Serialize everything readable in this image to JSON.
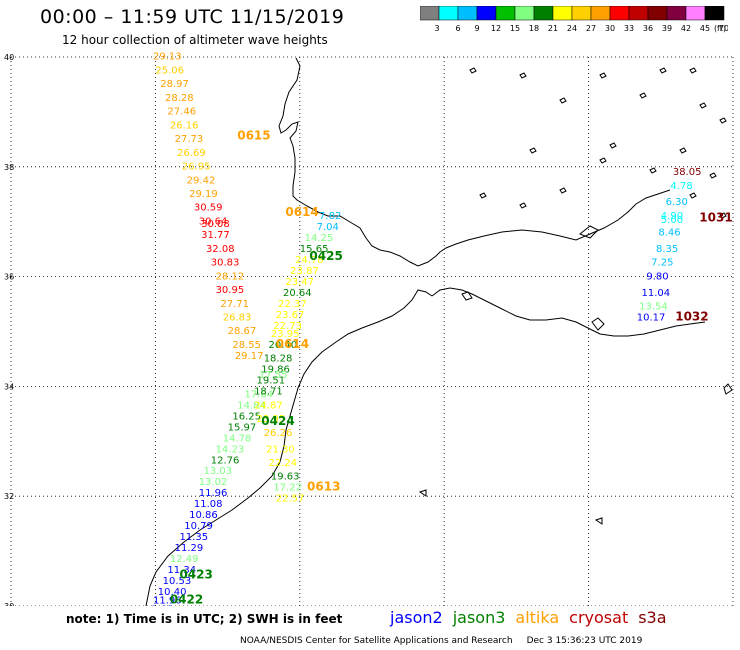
{
  "title": "00:00 – 11:59 UTC 11/15/2019",
  "subtitle": "12 hour collection of altimeter wave heights",
  "colorbar": {
    "colors": [
      "#7f7f7f",
      "#00ffff",
      "#00bfff",
      "#0000ff",
      "#00c000",
      "#80ff80",
      "#008000",
      "#ffff00",
      "#ffd000",
      "#ffa000",
      "#ff0000",
      "#c00000",
      "#800000",
      "#800040",
      "#ff80ff",
      "#000000"
    ],
    "ticks": [
      "3",
      "6",
      "9",
      "12",
      "15",
      "18",
      "21",
      "24",
      "27",
      "30",
      "33",
      "36",
      "39",
      "42",
      "45",
      "70"
    ],
    "unit": "(ft)"
  },
  "axes": {
    "lon_ticks": [
      -15,
      -12,
      -9,
      -6,
      -3,
      0
    ],
    "lat_ticks": [
      30,
      32,
      34,
      36,
      38,
      40
    ],
    "lon_labels": [
      "–15",
      "–12",
      "–9",
      "–6",
      "–3",
      "0"
    ],
    "lat_labels": [
      "30",
      "32",
      "34",
      "36",
      "38",
      "40"
    ],
    "lon_range": [
      -15,
      0
    ],
    "lat_range": [
      30,
      40
    ],
    "grid": "dotted"
  },
  "passes": [
    {
      "label": "0615",
      "color": "#ffa000",
      "lon": -10.3,
      "lat": 38.5
    },
    {
      "label": "0614",
      "color": "#ffa000",
      "lon": -9.3,
      "lat": 37.1
    },
    {
      "label": "0425",
      "color": "#008000",
      "lon": -8.8,
      "lat": 36.3
    },
    {
      "label": "0614",
      "color": "#ffa000",
      "lon": -9.5,
      "lat": 34.7
    },
    {
      "label": "0424",
      "color": "#008000",
      "lon": -9.8,
      "lat": 33.3
    },
    {
      "label": "0613",
      "color": "#ffa000",
      "lon": -8.85,
      "lat": 32.1
    },
    {
      "label": "0423",
      "color": "#008000",
      "lon": -11.5,
      "lat": 30.5
    },
    {
      "label": "0422",
      "color": "#008000",
      "lon": -11.7,
      "lat": 30.05
    },
    {
      "label": "1031",
      "color": "#800000",
      "lon": -0.7,
      "lat": 37.0
    },
    {
      "label": "1032",
      "color": "#800000",
      "lon": -1.2,
      "lat": 35.2
    }
  ],
  "labels": [
    {
      "v": "29.13",
      "c": "#ffa000",
      "lon": -12.05,
      "lat": 39.95
    },
    {
      "v": "25.06",
      "c": "#ffd000",
      "lon": -12.0,
      "lat": 39.7
    },
    {
      "v": "28.97",
      "c": "#ffa000",
      "lon": -11.9,
      "lat": 39.45
    },
    {
      "v": "28.28",
      "c": "#ffa000",
      "lon": -11.8,
      "lat": 39.2
    },
    {
      "v": "27.46",
      "c": "#ffa000",
      "lon": -11.75,
      "lat": 38.95
    },
    {
      "v": "26.16",
      "c": "#ffd000",
      "lon": -11.7,
      "lat": 38.7
    },
    {
      "v": "27.73",
      "c": "#ffa000",
      "lon": -11.6,
      "lat": 38.45
    },
    {
      "v": "26.69",
      "c": "#ffd000",
      "lon": -11.55,
      "lat": 38.2
    },
    {
      "v": "26.95",
      "c": "#ffd000",
      "lon": -11.45,
      "lat": 37.95
    },
    {
      "v": "29.42",
      "c": "#ffa000",
      "lon": -11.35,
      "lat": 37.7
    },
    {
      "v": "29.19",
      "c": "#ffa000",
      "lon": -11.3,
      "lat": 37.45
    },
    {
      "v": "30.59",
      "c": "#ff0000",
      "lon": -11.2,
      "lat": 37.2
    },
    {
      "v": "30.64",
      "c": "#ff0000",
      "lon": -11.1,
      "lat": 36.95
    },
    {
      "v": "30.08",
      "c": "#ff0000",
      "lon": -11.05,
      "lat": 36.9
    },
    {
      "v": "31.77",
      "c": "#ff0000",
      "lon": -11.05,
      "lat": 36.7
    },
    {
      "v": "32.08",
      "c": "#ff0000",
      "lon": -10.95,
      "lat": 36.45
    },
    {
      "v": "30.83",
      "c": "#ff0000",
      "lon": -10.85,
      "lat": 36.2
    },
    {
      "v": "28.12",
      "c": "#ffa000",
      "lon": -10.75,
      "lat": 35.95
    },
    {
      "v": "30.95",
      "c": "#ff0000",
      "lon": -10.75,
      "lat": 35.7
    },
    {
      "v": "27.71",
      "c": "#ffa000",
      "lon": -10.65,
      "lat": 35.45
    },
    {
      "v": "26.83",
      "c": "#ffd000",
      "lon": -10.6,
      "lat": 35.2
    },
    {
      "v": "28.67",
      "c": "#ffa000",
      "lon": -10.5,
      "lat": 34.95
    },
    {
      "v": "28.55",
      "c": "#ffa000",
      "lon": -10.4,
      "lat": 34.7
    },
    {
      "v": "29.17",
      "c": "#ffa000",
      "lon": -10.35,
      "lat": 34.5
    },
    {
      "v": "7.82",
      "c": "#00bfff",
      "lon": -8.6,
      "lat": 37.05
    },
    {
      "v": "7.04",
      "c": "#00bfff",
      "lon": -8.65,
      "lat": 36.85
    },
    {
      "v": "14.25",
      "c": "#80ff80",
      "lon": -8.9,
      "lat": 36.65
    },
    {
      "v": "15.65",
      "c": "#008000",
      "lon": -9.0,
      "lat": 36.45
    },
    {
      "v": "24.78",
      "c": "#ffff00",
      "lon": -9.1,
      "lat": 36.25
    },
    {
      "v": "23.87",
      "c": "#ffff00",
      "lon": -9.2,
      "lat": 36.05
    },
    {
      "v": "23.47",
      "c": "#ffff00",
      "lon": -9.3,
      "lat": 35.85
    },
    {
      "v": "20.64",
      "c": "#008000",
      "lon": -9.35,
      "lat": 35.65
    },
    {
      "v": "22.37",
      "c": "#ffff00",
      "lon": -9.45,
      "lat": 35.45
    },
    {
      "v": "23.67",
      "c": "#ffff00",
      "lon": -9.5,
      "lat": 35.25
    },
    {
      "v": "22.73",
      "c": "#ffff00",
      "lon": -9.55,
      "lat": 35.05
    },
    {
      "v": "23.95",
      "c": "#ffff00",
      "lon": -9.6,
      "lat": 34.9
    },
    {
      "v": "20.40",
      "c": "#008000",
      "lon": -9.65,
      "lat": 34.7
    },
    {
      "v": "18.28",
      "c": "#008000",
      "lon": -9.75,
      "lat": 34.45
    },
    {
      "v": "19.86",
      "c": "#008000",
      "lon": -9.8,
      "lat": 34.25
    },
    {
      "v": "17.55",
      "c": "#80ff80",
      "lon": -9.85,
      "lat": 34.15
    },
    {
      "v": "19.51",
      "c": "#008000",
      "lon": -9.9,
      "lat": 34.05
    },
    {
      "v": "17.64",
      "c": "#80ff80",
      "lon": -10.15,
      "lat": 33.8
    },
    {
      "v": "18.71",
      "c": "#008000",
      "lon": -9.95,
      "lat": 33.85
    },
    {
      "v": "14.84",
      "c": "#80ff80",
      "lon": -10.3,
      "lat": 33.6
    },
    {
      "v": "24.87",
      "c": "#ffff00",
      "lon": -9.95,
      "lat": 33.6
    },
    {
      "v": "16.25",
      "c": "#008000",
      "lon": -10.4,
      "lat": 33.4
    },
    {
      "v": "23.95",
      "c": "#ffff00",
      "lon": -9.9,
      "lat": 33.35
    },
    {
      "v": "15.97",
      "c": "#008000",
      "lon": -10.5,
      "lat": 33.2
    },
    {
      "v": "14.78",
      "c": "#80ff80",
      "lon": -10.6,
      "lat": 33.0
    },
    {
      "v": "26.26",
      "c": "#ffd000",
      "lon": -9.75,
      "lat": 33.1
    },
    {
      "v": "14.23",
      "c": "#80ff80",
      "lon": -10.75,
      "lat": 32.8
    },
    {
      "v": "21.30",
      "c": "#ffff00",
      "lon": -9.7,
      "lat": 32.8
    },
    {
      "v": "12.76",
      "c": "#008000",
      "lon": -10.85,
      "lat": 32.6
    },
    {
      "v": "22.24",
      "c": "#ffff00",
      "lon": -9.65,
      "lat": 32.55
    },
    {
      "v": "13.03",
      "c": "#80ff80",
      "lon": -11.0,
      "lat": 32.4
    },
    {
      "v": "19.63",
      "c": "#008000",
      "lon": -9.6,
      "lat": 32.3
    },
    {
      "v": "13.02",
      "c": "#80ff80",
      "lon": -11.1,
      "lat": 32.2
    },
    {
      "v": "17.22",
      "c": "#80ff80",
      "lon": -9.55,
      "lat": 32.1
    },
    {
      "v": "11.96",
      "c": "#0000ff",
      "lon": -11.1,
      "lat": 32.0
    },
    {
      "v": "22.57",
      "c": "#ffff00",
      "lon": -9.5,
      "lat": 31.9
    },
    {
      "v": "11.08",
      "c": "#0000ff",
      "lon": -11.2,
      "lat": 31.8
    },
    {
      "v": "10.86",
      "c": "#0000ff",
      "lon": -11.3,
      "lat": 31.6
    },
    {
      "v": "10.79",
      "c": "#0000ff",
      "lon": -11.4,
      "lat": 31.4
    },
    {
      "v": "11.35",
      "c": "#0000ff",
      "lon": -11.5,
      "lat": 31.2
    },
    {
      "v": "11.29",
      "c": "#0000ff",
      "lon": -11.6,
      "lat": 31.0
    },
    {
      "v": "12.49",
      "c": "#80ff80",
      "lon": -11.7,
      "lat": 30.8
    },
    {
      "v": "11.34",
      "c": "#0000ff",
      "lon": -11.75,
      "lat": 30.6
    },
    {
      "v": "10.53",
      "c": "#0000ff",
      "lon": -11.85,
      "lat": 30.4
    },
    {
      "v": "10.40",
      "c": "#0000ff",
      "lon": -11.95,
      "lat": 30.2
    },
    {
      "v": "11.96",
      "c": "#0000ff",
      "lon": -12.05,
      "lat": 30.05
    },
    {
      "v": "9.68",
      "c": "#0000ff",
      "lon": -12.1,
      "lat": 29.88
    },
    {
      "v": "9.82",
      "c": "#0000ff",
      "lon": -12.25,
      "lat": 29.72
    },
    {
      "v": "38.05",
      "c": "#800000",
      "lon": -1.25,
      "lat": 37.85
    },
    {
      "v": "4.78",
      "c": "#00ffff",
      "lon": -1.3,
      "lat": 37.6
    },
    {
      "v": "6.30",
      "c": "#00bfff",
      "lon": -1.4,
      "lat": 37.3
    },
    {
      "v": "4.90",
      "c": "#00ffff",
      "lon": -1.5,
      "lat": 37.05
    },
    {
      "v": "5.00",
      "c": "#00ffff",
      "lon": -1.5,
      "lat": 36.98
    },
    {
      "v": "8.46",
      "c": "#00bfff",
      "lon": -1.55,
      "lat": 36.75
    },
    {
      "v": "8.35",
      "c": "#00bfff",
      "lon": -1.6,
      "lat": 36.45
    },
    {
      "v": "7.25",
      "c": "#00bfff",
      "lon": -1.7,
      "lat": 36.2
    },
    {
      "v": "9.80",
      "c": "#0000ff",
      "lon": -1.8,
      "lat": 35.95
    },
    {
      "v": "11.04",
      "c": "#0000ff",
      "lon": -1.9,
      "lat": 35.65
    },
    {
      "v": "13.54",
      "c": "#80ff80",
      "lon": -1.95,
      "lat": 35.4
    },
    {
      "v": "10.17",
      "c": "#0000ff",
      "lon": -2.0,
      "lat": 35.2
    }
  ],
  "note": "note: 1) Time is in UTC; 2) SWH is in feet",
  "legend": [
    {
      "name": "jason2",
      "color": "#0000ff"
    },
    {
      "name": "jason3",
      "color": "#008000"
    },
    {
      "name": "altika",
      "color": "#ffa000"
    },
    {
      "name": "cryosat",
      "color": "#c00000"
    },
    {
      "name": "s3a",
      "color": "#800000"
    }
  ],
  "footer": {
    "org": "NOAA/NESDIS Center for Satellite Applications and Research",
    "date": "Dec  3 15:36:23 UTC 2019"
  }
}
